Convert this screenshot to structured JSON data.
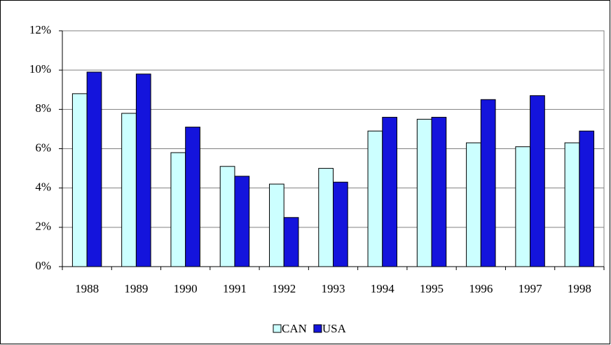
{
  "chart_data": {
    "type": "bar",
    "categories": [
      "1988",
      "1989",
      "1990",
      "1991",
      "1992",
      "1993",
      "1994",
      "1995",
      "1996",
      "1997",
      "1998"
    ],
    "series": [
      {
        "name": "CAN",
        "color": "#ccffff",
        "values": [
          8.8,
          7.8,
          5.8,
          5.1,
          4.2,
          5.0,
          6.9,
          7.5,
          6.3,
          6.1,
          6.3
        ]
      },
      {
        "name": "USA",
        "color": "#1414dc",
        "values": [
          9.9,
          9.8,
          7.1,
          4.6,
          2.5,
          4.3,
          7.6,
          7.6,
          8.5,
          8.7,
          6.9
        ]
      }
    ],
    "ylim": [
      0,
      12
    ],
    "yticks": [
      {
        "value": 0,
        "label": "0%"
      },
      {
        "value": 2,
        "label": "2%"
      },
      {
        "value": 4,
        "label": "4%"
      },
      {
        "value": 6,
        "label": "6%"
      },
      {
        "value": 8,
        "label": "8%"
      },
      {
        "value": 10,
        "label": "10%"
      },
      {
        "value": 12,
        "label": "12%"
      }
    ],
    "grid": true,
    "legend": "bottom"
  }
}
